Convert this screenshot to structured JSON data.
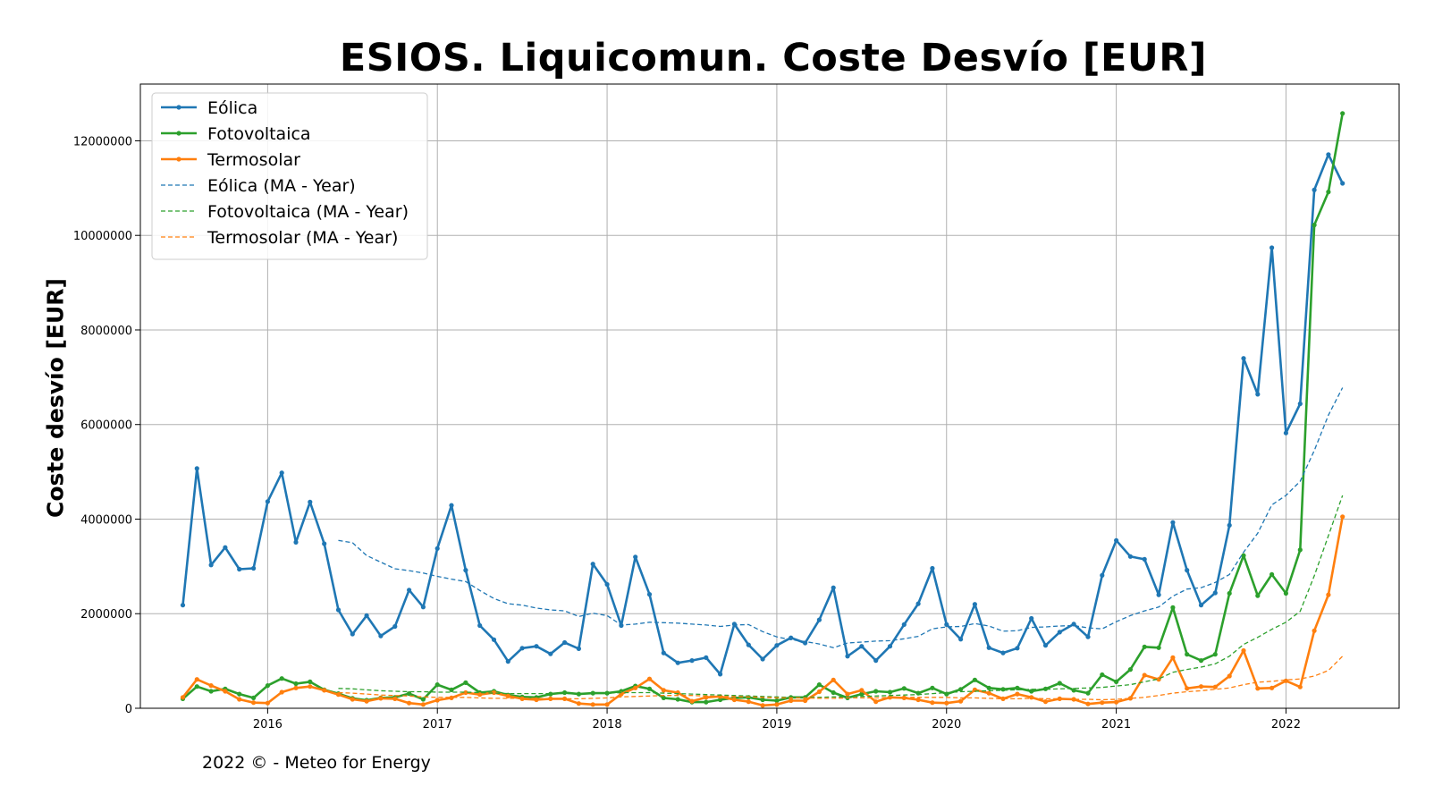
{
  "chart_data": {
    "type": "line",
    "title": "ESIOS. Liquicomun. Coste Desvío [EUR]",
    "xlabel": "",
    "ylabel": "Coste desvío [EUR]",
    "x_start": "2015-07",
    "x_ticks": [
      "2016",
      "2017",
      "2018",
      "2019",
      "2020",
      "2021",
      "2022"
    ],
    "y_ticks": [
      "0",
      "2000000",
      "4000000",
      "6000000",
      "8000000",
      "10000000",
      "12000000"
    ],
    "xlim": [
      "2015-04",
      "2022-09"
    ],
    "ylim": [
      0,
      13200000
    ],
    "grid": true,
    "legend_position": "upper-left",
    "series": [
      {
        "name": "Eólica",
        "color": "#1f77b4",
        "style": "solid-marker",
        "values": [
          2180000,
          5070000,
          3030000,
          3400000,
          2940000,
          2960000,
          4370000,
          4980000,
          3510000,
          4360000,
          3480000,
          2080000,
          1570000,
          1960000,
          1530000,
          1730000,
          2500000,
          2140000,
          3380000,
          4290000,
          2920000,
          1750000,
          1450000,
          990000,
          1270000,
          1310000,
          1150000,
          1390000,
          1260000,
          3050000,
          2620000,
          1750000,
          3200000,
          2410000,
          1170000,
          960000,
          1010000,
          1070000,
          720000,
          1780000,
          1340000,
          1040000,
          1330000,
          1490000,
          1380000,
          1870000,
          2550000,
          1100000,
          1310000,
          1010000,
          1310000,
          1770000,
          2210000,
          2960000,
          1770000,
          1460000,
          2200000,
          1280000,
          1170000,
          1270000,
          1900000,
          1330000,
          1610000,
          1780000,
          1510000,
          2810000,
          3550000,
          3210000,
          3150000,
          2400000,
          3930000,
          2920000,
          2180000,
          2440000,
          3870000,
          7400000,
          6640000,
          9740000,
          5820000,
          6440000,
          10960000,
          11710000,
          11100000
        ]
      },
      {
        "name": "Fotovoltaica",
        "color": "#2ca02c",
        "style": "solid-marker",
        "values": [
          200000,
          460000,
          360000,
          410000,
          300000,
          220000,
          480000,
          630000,
          520000,
          560000,
          390000,
          310000,
          210000,
          170000,
          220000,
          230000,
          310000,
          190000,
          500000,
          390000,
          540000,
          330000,
          360000,
          280000,
          240000,
          230000,
          300000,
          330000,
          300000,
          320000,
          320000,
          360000,
          470000,
          410000,
          220000,
          190000,
          130000,
          130000,
          180000,
          220000,
          230000,
          180000,
          160000,
          230000,
          230000,
          500000,
          330000,
          220000,
          300000,
          360000,
          340000,
          420000,
          320000,
          430000,
          300000,
          400000,
          600000,
          430000,
          400000,
          430000,
          360000,
          410000,
          530000,
          380000,
          320000,
          710000,
          560000,
          820000,
          1300000,
          1280000,
          2130000,
          1140000,
          1010000,
          1140000,
          2430000,
          3230000,
          2380000,
          2830000,
          2430000,
          3350000,
          10220000,
          10920000,
          12580000
        ]
      },
      {
        "name": "Termosolar",
        "color": "#ff7f0e",
        "style": "solid-marker",
        "values": [
          230000,
          610000,
          480000,
          360000,
          190000,
          120000,
          110000,
          340000,
          430000,
          460000,
          380000,
          290000,
          190000,
          150000,
          210000,
          200000,
          110000,
          80000,
          170000,
          220000,
          330000,
          290000,
          330000,
          260000,
          200000,
          180000,
          200000,
          200000,
          100000,
          80000,
          80000,
          300000,
          430000,
          620000,
          380000,
          330000,
          150000,
          230000,
          250000,
          180000,
          140000,
          60000,
          80000,
          160000,
          160000,
          350000,
          600000,
          300000,
          380000,
          140000,
          230000,
          220000,
          180000,
          120000,
          110000,
          150000,
          390000,
          320000,
          200000,
          300000,
          230000,
          140000,
          200000,
          190000,
          90000,
          120000,
          130000,
          210000,
          700000,
          610000,
          1070000,
          420000,
          460000,
          450000,
          680000,
          1220000,
          420000,
          430000,
          580000,
          450000,
          1640000,
          2400000,
          4050000
        ]
      },
      {
        "name": "Eólica (MA - Year)",
        "color": "#1f77b4",
        "style": "dashed",
        "start_index": 11,
        "values": [
          3550000,
          3500000,
          3230000,
          3090000,
          2950000,
          2910000,
          2860000,
          2790000,
          2730000,
          2680000,
          2490000,
          2320000,
          2210000,
          2180000,
          2120000,
          2080000,
          2060000,
          1940000,
          2010000,
          1960000,
          1760000,
          1780000,
          1820000,
          1810000,
          1800000,
          1780000,
          1760000,
          1730000,
          1760000,
          1770000,
          1620000,
          1510000,
          1450000,
          1410000,
          1360000,
          1280000,
          1380000,
          1400000,
          1420000,
          1430000,
          1470000,
          1520000,
          1680000,
          1720000,
          1730000,
          1790000,
          1740000,
          1630000,
          1640000,
          1710000,
          1720000,
          1740000,
          1750000,
          1700000,
          1680000,
          1830000,
          1960000,
          2060000,
          2140000,
          2370000,
          2520000,
          2550000,
          2660000,
          2830000,
          3300000,
          3700000,
          4300000,
          4500000,
          4800000,
          5450000,
          6200000,
          6780000
        ]
      },
      {
        "name": "Fotovoltaica (MA - Year)",
        "color": "#2ca02c",
        "style": "dashed",
        "start_index": 11,
        "values": [
          420000,
          410000,
          390000,
          370000,
          360000,
          350000,
          350000,
          340000,
          340000,
          340000,
          330000,
          320000,
          310000,
          310000,
          310000,
          310000,
          310000,
          310000,
          320000,
          320000,
          330000,
          330000,
          330000,
          320000,
          310000,
          300000,
          290000,
          280000,
          270000,
          260000,
          250000,
          240000,
          230000,
          230000,
          230000,
          240000,
          240000,
          250000,
          260000,
          270000,
          280000,
          290000,
          310000,
          330000,
          350000,
          360000,
          370000,
          380000,
          390000,
          400000,
          400000,
          410000,
          420000,
          430000,
          440000,
          470000,
          500000,
          560000,
          620000,
          760000,
          820000,
          870000,
          940000,
          1100000,
          1350000,
          1500000,
          1670000,
          1820000,
          2050000,
          2800000,
          3650000,
          4500000
        ]
      },
      {
        "name": "Termosolar (MA - Year)",
        "color": "#ff7f0e",
        "style": "dashed",
        "start_index": 11,
        "values": [
          330000,
          320000,
          300000,
          280000,
          270000,
          260000,
          240000,
          230000,
          230000,
          230000,
          220000,
          210000,
          210000,
          210000,
          210000,
          200000,
          200000,
          200000,
          210000,
          220000,
          240000,
          250000,
          260000,
          270000,
          270000,
          270000,
          260000,
          250000,
          250000,
          240000,
          230000,
          220000,
          220000,
          220000,
          210000,
          210000,
          220000,
          220000,
          220000,
          230000,
          230000,
          230000,
          230000,
          230000,
          220000,
          220000,
          210000,
          200000,
          200000,
          210000,
          200000,
          200000,
          190000,
          190000,
          180000,
          190000,
          210000,
          230000,
          270000,
          320000,
          350000,
          370000,
          400000,
          430000,
          500000,
          550000,
          570000,
          600000,
          620000,
          680000,
          800000,
          1100000
        ]
      }
    ]
  },
  "footer": "2022 © - Meteo for Energy"
}
